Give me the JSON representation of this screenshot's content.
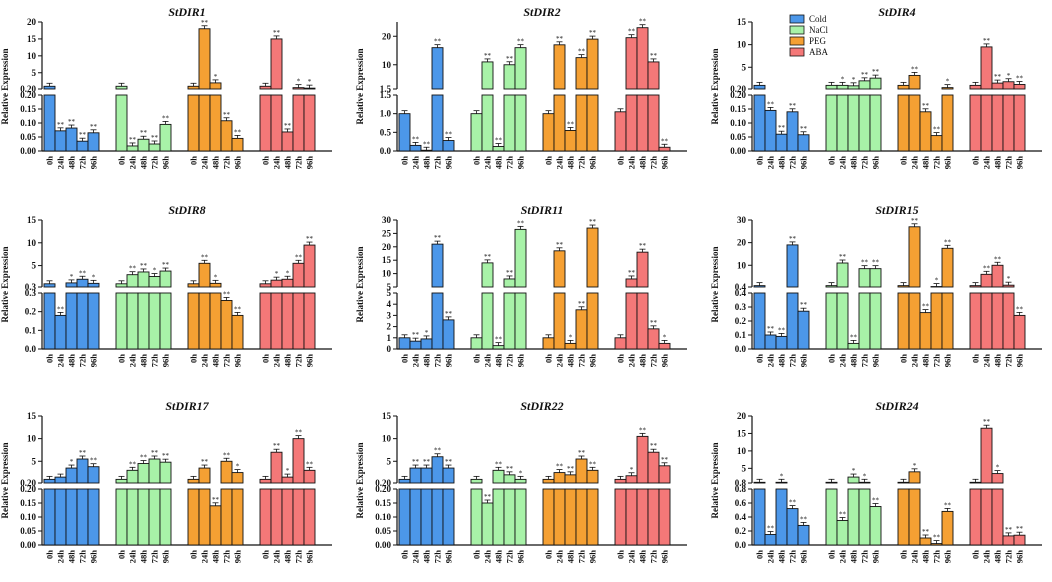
{
  "figure": {
    "y_label": "Relative Expression",
    "time_labels": [
      "0h",
      "24h",
      "48h",
      "72h",
      "96h"
    ],
    "legend": [
      {
        "name": "Cold",
        "color": "#4c97e9"
      },
      {
        "name": "NaCl",
        "color": "#a8f2a8"
      },
      {
        "name": "PEG",
        "color": "#f5a033"
      },
      {
        "name": "ABA",
        "color": "#f47878"
      }
    ]
  },
  "chart_data": [
    {
      "type": "bar",
      "title": "StDIR1",
      "ylabel": "Relative Expression",
      "categories": [
        "0h",
        "24h",
        "48h",
        "72h",
        "96h"
      ],
      "upper_axis": {
        "range": [
          0.2,
          20
        ],
        "ticks": [
          0.2,
          5,
          10,
          15,
          20
        ],
        "tick_labels": [
          "0.20",
          "5",
          "10",
          "15",
          "20"
        ]
      },
      "lower_axis": {
        "range": [
          0,
          0.2
        ],
        "ticks": [
          0,
          0.05,
          0.1,
          0.15,
          0.2
        ],
        "tick_labels": [
          "0.00",
          "0.05",
          "0.10",
          "0.15",
          "0.20"
        ]
      },
      "series": [
        {
          "name": "Cold",
          "values": [
            1.0,
            0.072,
            0.082,
            0.035,
            0.065
          ],
          "sig": [
            "",
            "**",
            "**",
            "**",
            "**"
          ]
        },
        {
          "name": "NaCl",
          "values": [
            1.0,
            0.018,
            0.042,
            0.025,
            0.095
          ],
          "sig": [
            "",
            "**",
            "**",
            "**",
            "**"
          ]
        },
        {
          "name": "PEG",
          "values": [
            1.0,
            18.0,
            2.0,
            0.108,
            0.045
          ],
          "sig": [
            "",
            "**",
            "*",
            "**",
            "**"
          ]
        },
        {
          "name": "ABA",
          "values": [
            1.0,
            15.0,
            0.068,
            0.6,
            0.45
          ],
          "sig": [
            "",
            "**",
            "**",
            "*",
            "*"
          ]
        }
      ]
    },
    {
      "type": "bar",
      "title": "StDIR2",
      "ylabel": "Relative Expression",
      "categories": [
        "0h",
        "24h",
        "48h",
        "72h",
        "96h"
      ],
      "upper_axis": {
        "range": [
          1.5,
          25
        ],
        "ticks": [
          1.5,
          10,
          20
        ],
        "tick_labels": [
          "1.5",
          "10",
          "20"
        ]
      },
      "lower_axis": {
        "range": [
          0,
          1.5
        ],
        "ticks": [
          0,
          0.5,
          1.0,
          1.5
        ],
        "tick_labels": [
          "0.0",
          "0.5",
          "1.0",
          "1.5"
        ]
      },
      "series": [
        {
          "name": "Cold",
          "values": [
            1.0,
            0.15,
            0.02,
            16.0,
            0.28
          ],
          "sig": [
            "",
            "**",
            "**",
            "**",
            "**"
          ]
        },
        {
          "name": "NaCl",
          "values": [
            1.0,
            11.0,
            0.12,
            10.0,
            16.0
          ],
          "sig": [
            "",
            "**",
            "**",
            "**",
            "**"
          ]
        },
        {
          "name": "PEG",
          "values": [
            1.0,
            17.0,
            0.55,
            12.5,
            19.0
          ],
          "sig": [
            "",
            "**",
            "**",
            "**",
            "**"
          ]
        },
        {
          "name": "ABA",
          "values": [
            1.05,
            19.5,
            23.0,
            11.0,
            0.1
          ],
          "sig": [
            "",
            "**",
            "**",
            "**",
            "**"
          ]
        }
      ]
    },
    {
      "type": "bar",
      "title": "StDIR4",
      "ylabel": "Relative Expression",
      "categories": [
        "0h",
        "24h",
        "48h",
        "72h",
        "96h"
      ],
      "upper_axis": {
        "range": [
          0.2,
          15
        ],
        "ticks": [
          0.2,
          5,
          10,
          15
        ],
        "tick_labels": [
          "0.20",
          "5",
          "10",
          "15"
        ]
      },
      "lower_axis": {
        "range": [
          0,
          0.2
        ],
        "ticks": [
          0,
          0.05,
          0.1,
          0.15,
          0.2
        ],
        "tick_labels": [
          "0.00",
          "0.05",
          "0.10",
          "0.15",
          "0.20"
        ]
      },
      "series": [
        {
          "name": "Cold",
          "values": [
            1.0,
            0.145,
            0.06,
            0.14,
            0.058
          ],
          "sig": [
            "",
            "**",
            "**",
            "**",
            "**"
          ]
        },
        {
          "name": "NaCl",
          "values": [
            1.0,
            1.0,
            0.9,
            2.0,
            2.6
          ],
          "sig": [
            "",
            "*",
            "*",
            "**",
            "**"
          ]
        },
        {
          "name": "PEG",
          "values": [
            1.0,
            3.2,
            0.14,
            0.055,
            0.5
          ],
          "sig": [
            "",
            "**",
            "**",
            "**",
            "*"
          ]
        },
        {
          "name": "ABA",
          "values": [
            1.0,
            9.5,
            1.5,
            1.8,
            1.2
          ],
          "sig": [
            "",
            "**",
            "**",
            "*",
            "**"
          ]
        }
      ]
    },
    {
      "type": "bar",
      "title": "StDIR8",
      "ylabel": "Relative Expression",
      "categories": [
        "0h",
        "24h",
        "48h",
        "72h",
        "96h"
      ],
      "upper_axis": {
        "range": [
          0.3,
          15
        ],
        "ticks": [
          0.3,
          5,
          10,
          15
        ],
        "tick_labels": [
          "0.3",
          "5",
          "10",
          "15"
        ]
      },
      "lower_axis": {
        "range": [
          0,
          0.3
        ],
        "ticks": [
          0,
          0.1,
          0.2,
          0.3
        ],
        "tick_labels": [
          "0.0",
          "0.1",
          "0.2",
          "0.3"
        ]
      },
      "series": [
        {
          "name": "Cold",
          "values": [
            1.0,
            0.18,
            1.2,
            2.0,
            1.1
          ],
          "sig": [
            "",
            "**",
            "*",
            "**",
            "*"
          ]
        },
        {
          "name": "NaCl",
          "values": [
            1.0,
            3.0,
            3.6,
            2.6,
            3.8
          ],
          "sig": [
            "",
            "**",
            "**",
            "*",
            "**"
          ]
        },
        {
          "name": "PEG",
          "values": [
            1.0,
            5.5,
            1.1,
            0.26,
            0.18
          ],
          "sig": [
            "",
            "**",
            "*",
            "**",
            "**"
          ]
        },
        {
          "name": "ABA",
          "values": [
            1.0,
            1.8,
            2.0,
            5.5,
            9.5
          ],
          "sig": [
            "",
            "*",
            "*",
            "**",
            "**"
          ]
        }
      ]
    },
    {
      "type": "bar",
      "title": "StDIR11",
      "ylabel": "Relative Expression",
      "categories": [
        "0h",
        "24h",
        "48h",
        "72h",
        "96h"
      ],
      "upper_axis": {
        "range": [
          5,
          30
        ],
        "ticks": [
          5,
          10,
          15,
          20,
          25,
          30
        ],
        "tick_labels": [
          "5",
          "10",
          "15",
          "20",
          "25",
          "30"
        ]
      },
      "lower_axis": {
        "range": [
          0,
          5
        ],
        "ticks": [
          0,
          1,
          2,
          3,
          4,
          5
        ],
        "tick_labels": [
          "0",
          "1",
          "2",
          "3",
          "4",
          "5"
        ]
      },
      "series": [
        {
          "name": "Cold",
          "values": [
            1.0,
            0.7,
            0.9,
            21.0,
            2.6
          ],
          "sig": [
            "",
            "**",
            "*",
            "**",
            "**"
          ]
        },
        {
          "name": "NaCl",
          "values": [
            1.0,
            14.0,
            0.3,
            8.0,
            26.5
          ],
          "sig": [
            "",
            "**",
            "**",
            "**",
            "**"
          ]
        },
        {
          "name": "PEG",
          "values": [
            1.0,
            18.5,
            0.5,
            3.5,
            27.0
          ],
          "sig": [
            "",
            "**",
            "*",
            "**",
            "**"
          ]
        },
        {
          "name": "ABA",
          "values": [
            1.0,
            8.0,
            18.0,
            1.8,
            0.5
          ],
          "sig": [
            "",
            "**",
            "**",
            "**",
            "*"
          ]
        }
      ]
    },
    {
      "type": "bar",
      "title": "StDIR15",
      "ylabel": "Relative Expression",
      "categories": [
        "0h",
        "24h",
        "48h",
        "72h",
        "96h"
      ],
      "upper_axis": {
        "range": [
          0.4,
          30
        ],
        "ticks": [
          0.4,
          10,
          20,
          30
        ],
        "tick_labels": [
          "0.4",
          "10",
          "20",
          "30"
        ]
      },
      "lower_axis": {
        "range": [
          0,
          0.4
        ],
        "ticks": [
          0,
          0.1,
          0.2,
          0.3,
          0.4
        ],
        "tick_labels": [
          "0.0",
          "0.1",
          "0.2",
          "0.3",
          "0.4"
        ]
      },
      "series": [
        {
          "name": "Cold",
          "values": [
            1.0,
            0.1,
            0.09,
            19.0,
            0.27
          ],
          "sig": [
            "",
            "**",
            "**",
            "**",
            "**"
          ]
        },
        {
          "name": "NaCl",
          "values": [
            1.0,
            11.0,
            0.04,
            8.5,
            8.5
          ],
          "sig": [
            "",
            "**",
            "**",
            "**",
            "**"
          ]
        },
        {
          "name": "PEG",
          "values": [
            1.0,
            27.0,
            0.26,
            0.6,
            17.5
          ],
          "sig": [
            "",
            "**",
            "**",
            "*",
            "**"
          ]
        },
        {
          "name": "ABA",
          "values": [
            1.0,
            6.0,
            10.0,
            1.2,
            0.24
          ],
          "sig": [
            "",
            "**",
            "**",
            "*",
            "**"
          ]
        }
      ]
    },
    {
      "type": "bar",
      "title": "StDIR17",
      "ylabel": "Relative Expression",
      "categories": [
        "0h",
        "24h",
        "48h",
        "72h",
        "96h"
      ],
      "upper_axis": {
        "range": [
          0.2,
          15
        ],
        "ticks": [
          0.2,
          5,
          10,
          15
        ],
        "tick_labels": [
          "0.20",
          "5",
          "10",
          "15"
        ]
      },
      "lower_axis": {
        "range": [
          0,
          0.2
        ],
        "ticks": [
          0,
          0.05,
          0.1,
          0.15,
          0.2
        ],
        "tick_labels": [
          "0.00",
          "0.05",
          "0.10",
          "0.15",
          "0.20"
        ]
      },
      "series": [
        {
          "name": "Cold",
          "values": [
            1.0,
            1.5,
            3.5,
            5.5,
            3.8
          ],
          "sig": [
            "",
            "",
            "*",
            "**",
            "**"
          ]
        },
        {
          "name": "NaCl",
          "values": [
            1.0,
            3.0,
            4.5,
            5.5,
            4.8
          ],
          "sig": [
            "",
            "**",
            "**",
            "**",
            "**"
          ]
        },
        {
          "name": "PEG",
          "values": [
            1.0,
            3.5,
            0.14,
            5.0,
            2.5
          ],
          "sig": [
            "",
            "**",
            "**",
            "**",
            "*"
          ]
        },
        {
          "name": "ABA",
          "values": [
            1.0,
            7.0,
            1.5,
            10.0,
            3.0
          ],
          "sig": [
            "",
            "**",
            "*",
            "**",
            "**"
          ]
        }
      ]
    },
    {
      "type": "bar",
      "title": "StDIR22",
      "ylabel": "Relative Expression",
      "categories": [
        "0h",
        "24h",
        "48h",
        "72h",
        "96h"
      ],
      "upper_axis": {
        "range": [
          0.2,
          15
        ],
        "ticks": [
          0.2,
          5,
          10,
          15
        ],
        "tick_labels": [
          "0.20",
          "5",
          "10",
          "15"
        ]
      },
      "lower_axis": {
        "range": [
          0,
          0.2
        ],
        "ticks": [
          0,
          0.05,
          0.1,
          0.15,
          0.2
        ],
        "tick_labels": [
          "0.00",
          "0.05",
          "0.10",
          "0.15",
          "0.20"
        ]
      },
      "series": [
        {
          "name": "Cold",
          "values": [
            1.0,
            3.5,
            3.5,
            6.0,
            3.5
          ],
          "sig": [
            "",
            "**",
            "**",
            "**",
            "**"
          ]
        },
        {
          "name": "NaCl",
          "values": [
            1.0,
            0.15,
            3.0,
            2.0,
            1.0
          ],
          "sig": [
            "",
            "**",
            "**",
            "**",
            "*"
          ]
        },
        {
          "name": "PEG",
          "values": [
            1.0,
            2.5,
            2.0,
            5.5,
            3.0
          ],
          "sig": [
            "",
            "**",
            "**",
            "**",
            "**"
          ]
        },
        {
          "name": "ABA",
          "values": [
            1.0,
            1.8,
            10.5,
            7.0,
            4.0
          ],
          "sig": [
            "",
            "*",
            "**",
            "**",
            "**"
          ]
        }
      ]
    },
    {
      "type": "bar",
      "title": "StDIR24",
      "ylabel": "Relative Expression",
      "categories": [
        "0h",
        "24h",
        "48h",
        "72h",
        "96h"
      ],
      "upper_axis": {
        "range": [
          0.8,
          20
        ],
        "ticks": [
          0.8,
          5,
          10,
          15,
          20
        ],
        "tick_labels": [
          "0.8",
          "5",
          "10",
          "15",
          "20"
        ]
      },
      "lower_axis": {
        "range": [
          0,
          0.8
        ],
        "ticks": [
          0,
          0.2,
          0.4,
          0.6,
          0.8
        ],
        "tick_labels": [
          "0.0",
          "0.2",
          "0.4",
          "0.6",
          "0.8"
        ]
      },
      "series": [
        {
          "name": "Cold",
          "values": [
            1.0,
            0.15,
            1.0,
            0.52,
            0.28
          ],
          "sig": [
            "",
            "**",
            "*",
            "**",
            "**"
          ]
        },
        {
          "name": "NaCl",
          "values": [
            1.0,
            0.35,
            2.5,
            1.0,
            0.55
          ],
          "sig": [
            "",
            "**",
            "*",
            "*",
            "**"
          ]
        },
        {
          "name": "PEG",
          "values": [
            1.0,
            4.0,
            0.1,
            0.02,
            0.48
          ],
          "sig": [
            "",
            "*",
            "**",
            "**",
            "**"
          ]
        },
        {
          "name": "ABA",
          "values": [
            1.0,
            16.5,
            3.5,
            0.13,
            0.14
          ],
          "sig": [
            "",
            "**",
            "*",
            "**",
            "**"
          ]
        }
      ]
    }
  ]
}
